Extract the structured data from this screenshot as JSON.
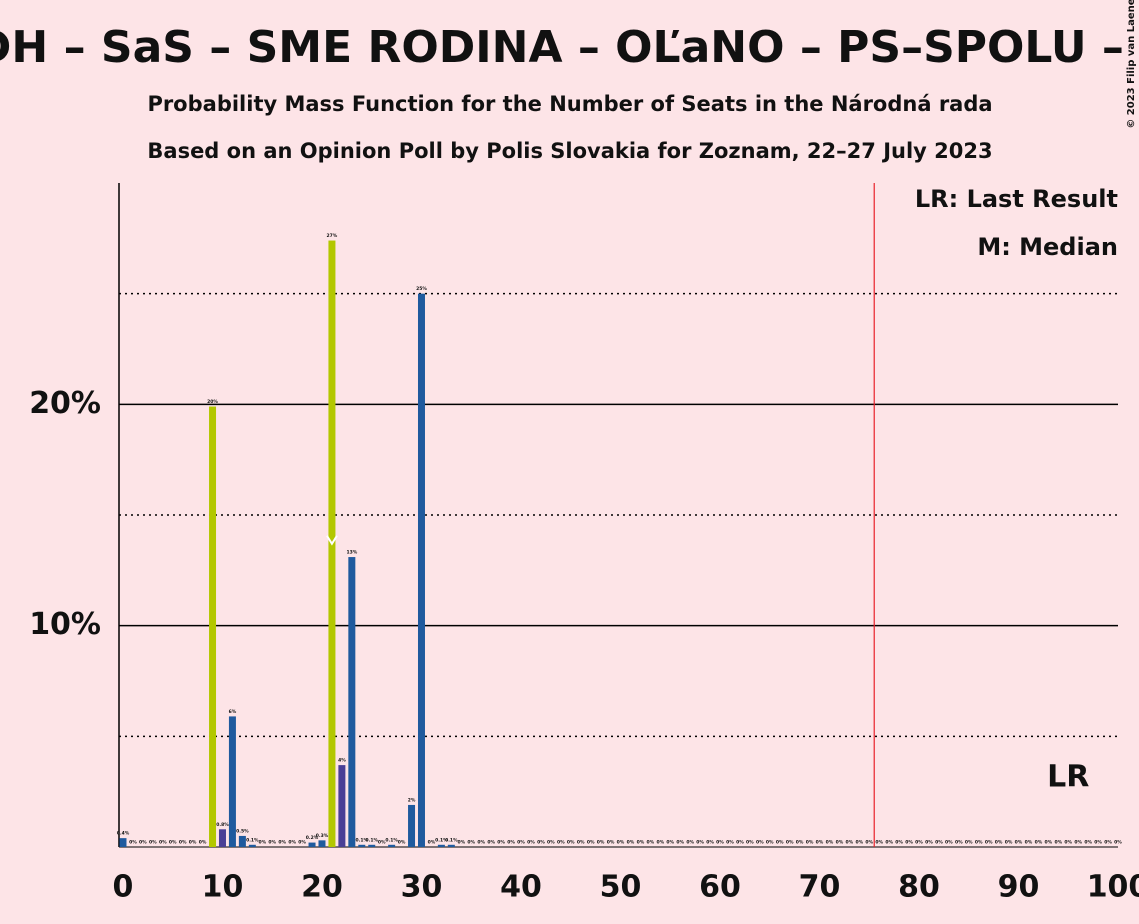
{
  "chart_data": {
    "type": "bar",
    "title": "KDH – SaS – SME RODINA – OĽaNO – PS–SPOLU – ZĽ",
    "subtitle": "Probability Mass Function for the Number of Seats in the Národná rada",
    "subtitle2": "Based on an Opinion Poll by Polis Slovakia for Zoznam, 22–27 July 2023",
    "copyright": "© 2023 Filip van Laenen",
    "legend": [
      "LR: Last Result",
      "M: Median"
    ],
    "lr_label": "LR",
    "last_result": 95,
    "median": 21,
    "majority": 76,
    "x": [
      0,
      1,
      2,
      3,
      4,
      5,
      6,
      7,
      8,
      9,
      10,
      11,
      12,
      13,
      14,
      15,
      16,
      17,
      18,
      19,
      20,
      21,
      22,
      23,
      24,
      25,
      26,
      27,
      28,
      29,
      30,
      31,
      32,
      33,
      34,
      35,
      36,
      37,
      38,
      39,
      40,
      41,
      42,
      43,
      44,
      45,
      46,
      47,
      48,
      49,
      50,
      51,
      52,
      53,
      54,
      55,
      56,
      57,
      58,
      59,
      60,
      61,
      62,
      63,
      64,
      65,
      66,
      67,
      68,
      69,
      70,
      71,
      72,
      73,
      74,
      75,
      76,
      77,
      78,
      79,
      80,
      81,
      82,
      83,
      84,
      85,
      86,
      87,
      88,
      89,
      90,
      91,
      92,
      93,
      94,
      95,
      96,
      97,
      98,
      99,
      100
    ],
    "values": [
      0.4,
      0,
      0,
      0,
      0,
      0,
      0,
      0,
      0,
      19.9,
      0.8,
      5.9,
      0.5,
      0.1,
      0,
      0,
      0,
      0,
      0,
      0.2,
      0.3,
      27.4,
      3.7,
      13.1,
      0.1,
      0.1,
      0,
      0.1,
      0,
      1.9,
      25,
      0,
      0.1,
      0.1,
      0,
      0,
      0,
      0,
      0,
      0,
      0,
      0,
      0,
      0,
      0,
      0,
      0,
      0,
      0,
      0,
      0,
      0,
      0,
      0,
      0,
      0,
      0,
      0,
      0,
      0,
      0,
      0,
      0,
      0,
      0,
      0,
      0,
      0,
      0,
      0,
      0,
      0,
      0,
      0,
      0,
      0,
      0,
      0,
      0,
      0,
      0,
      0,
      0,
      0,
      0,
      0,
      0,
      0,
      0,
      0,
      0,
      0,
      0,
      0,
      0,
      0,
      0,
      0,
      0,
      0,
      0
    ],
    "value_labels": [
      "0.4%",
      "0%",
      "0%",
      "0%",
      "0%",
      "0%",
      "0%",
      "0%",
      "0%",
      "20%",
      "0.8%",
      "6%",
      "0.5%",
      "0.1%",
      "0%",
      "0%",
      "0%",
      "0%",
      "0%",
      "0.2%",
      "0.3%",
      "27%",
      "4%",
      "13%",
      "0.1%",
      "0.1%",
      "0%",
      "0.1%",
      "0%",
      "2%",
      "25%",
      "0%",
      "0.1%",
      "0.1%",
      "0%",
      "0%",
      "0%",
      "0%",
      "0%",
      "0%",
      "0%",
      "0%",
      "0%",
      "0%",
      "0%",
      "0%",
      "0%",
      "0%",
      "0%",
      "0%",
      "0%",
      "0%",
      "0%",
      "0%",
      "0%",
      "0%",
      "0%",
      "0%",
      "0%",
      "0%",
      "0%",
      "0%",
      "0%",
      "0%",
      "0%",
      "0%",
      "0%",
      "0%",
      "0%",
      "0%",
      "0%",
      "0%",
      "0%",
      "0%",
      "0%",
      "0%",
      "0%",
      "0%",
      "0%",
      "0%",
      "0%",
      "0%",
      "0%",
      "0%",
      "0%",
      "0%",
      "0%",
      "0%",
      "0%",
      "0%",
      "0%",
      "0%",
      "0%",
      "0%",
      "0%",
      "0%",
      "0%",
      "0%",
      "0%",
      "0%",
      "0%"
    ],
    "color": "#1f5a9e",
    "colors": {
      "9": "#b3c700",
      "21": "#b3c700",
      "10": "#4a3f96",
      "22": "#4a3f96"
    },
    "xlim": [
      -0.4,
      100
    ],
    "ylim": [
      0,
      30
    ],
    "xticks": [
      0,
      10,
      20,
      30,
      40,
      50,
      60,
      70,
      80,
      90,
      100
    ],
    "yticks": [
      {
        "value": 10,
        "label": "10%"
      },
      {
        "value": 20,
        "label": "20%"
      }
    ],
    "minor_grid": [
      5,
      15,
      25
    ]
  }
}
